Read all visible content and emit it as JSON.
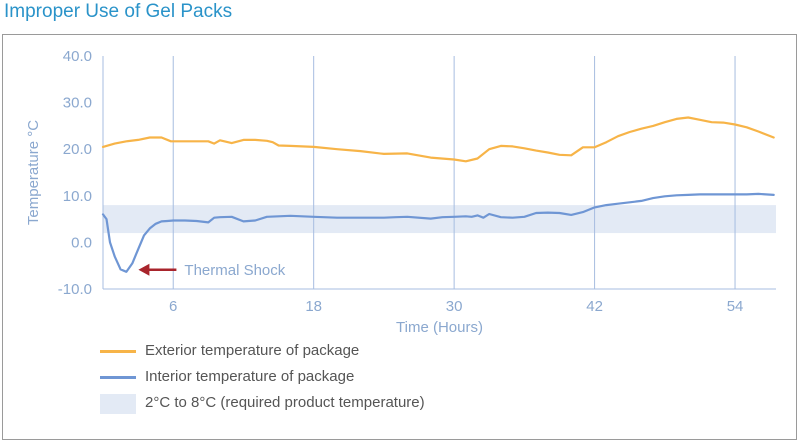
{
  "page": {
    "title": "Improper Use of Gel Packs"
  },
  "chart_data": {
    "type": "line",
    "xlabel": "Time (Hours)",
    "ylabel": "Temperature °C",
    "xlim": [
      0,
      57.5
    ],
    "ylim": [
      -10,
      40
    ],
    "xticks": [
      6,
      18,
      30,
      42,
      54
    ],
    "xtick_labels": [
      "6",
      "18",
      "30",
      "42",
      "54"
    ],
    "yticks": [
      40,
      30,
      20,
      10,
      0,
      -10
    ],
    "ytick_labels": [
      "40.0",
      "30.0",
      "20.0",
      "10.0",
      "0.0",
      "-10.0"
    ],
    "grid": {
      "vertical": true,
      "horizontal": false
    },
    "band": {
      "y0": 2,
      "y1": 8,
      "color": "#e3eaf5",
      "label": "2°C to 8°C (required  product temperature)"
    },
    "series": [
      {
        "name": "Exterior temperature of package",
        "color": "#f7b448",
        "x": [
          0,
          1,
          2,
          3,
          4,
          5,
          5.8,
          7,
          8,
          9,
          9.5,
          10,
          10.5,
          11,
          12,
          13,
          14,
          14.5,
          15,
          16,
          18,
          20,
          22,
          24,
          26,
          28,
          30,
          31,
          32,
          33,
          34,
          35,
          36,
          37,
          38,
          39,
          40,
          41,
          42,
          43,
          44,
          45,
          46,
          47,
          48,
          49,
          50,
          51,
          52,
          53,
          54,
          55,
          56,
          57.3
        ],
        "y": [
          20.5,
          21.2,
          21.7,
          22,
          22.5,
          22.5,
          21.7,
          21.7,
          21.7,
          21.7,
          21.2,
          21.9,
          21.6,
          21.3,
          22,
          22,
          21.8,
          21.5,
          20.8,
          20.7,
          20.5,
          20,
          19.6,
          19,
          19.1,
          18.2,
          17.8,
          17.4,
          18,
          20,
          20.7,
          20.6,
          20.2,
          19.7,
          19.3,
          18.8,
          18.7,
          20.4,
          20.4,
          21.5,
          22.8,
          23.7,
          24.4,
          25,
          25.8,
          26.5,
          26.8,
          26.3,
          25.8,
          25.7,
          25.3,
          24.7,
          23.8,
          22.5
        ]
      },
      {
        "name": "Interior temperature of package",
        "color": "#6f96d4",
        "x": [
          0,
          0.3,
          0.6,
          1,
          1.5,
          2,
          2.5,
          3,
          3.5,
          4,
          4.5,
          5,
          5.5,
          6,
          7,
          8,
          9,
          9.5,
          10,
          11,
          12,
          13,
          14,
          16,
          18,
          20,
          22,
          24,
          25,
          26,
          28,
          29,
          30,
          31,
          31.5,
          32,
          32.5,
          33,
          34,
          35,
          36,
          37,
          38,
          39,
          40,
          41,
          42,
          43,
          44,
          45,
          46,
          47,
          48,
          49,
          50,
          51,
          52,
          53,
          54,
          55,
          56,
          57.3
        ],
        "y": [
          6,
          5,
          0,
          -3,
          -5.8,
          -6.3,
          -4.5,
          -1.5,
          1.5,
          3,
          4,
          4.5,
          4.6,
          4.7,
          4.7,
          4.6,
          4.3,
          5.3,
          5.4,
          5.5,
          4.5,
          4.7,
          5.5,
          5.7,
          5.5,
          5.3,
          5.3,
          5.3,
          5.4,
          5.5,
          5.1,
          5.4,
          5.5,
          5.6,
          5.5,
          5.8,
          5.3,
          6.1,
          5.4,
          5.3,
          5.5,
          6.3,
          6.4,
          6.3,
          5.9,
          6.5,
          7.5,
          8,
          8.3,
          8.6,
          8.9,
          9.5,
          9.9,
          10.1,
          10.2,
          10.3,
          10.3,
          10.3,
          10.3,
          10.3,
          10.4,
          10.2
        ]
      }
    ],
    "annotation": {
      "text": "Thermal Shock",
      "x": 2,
      "y": -6.3,
      "color": "#a8242c"
    }
  }
}
